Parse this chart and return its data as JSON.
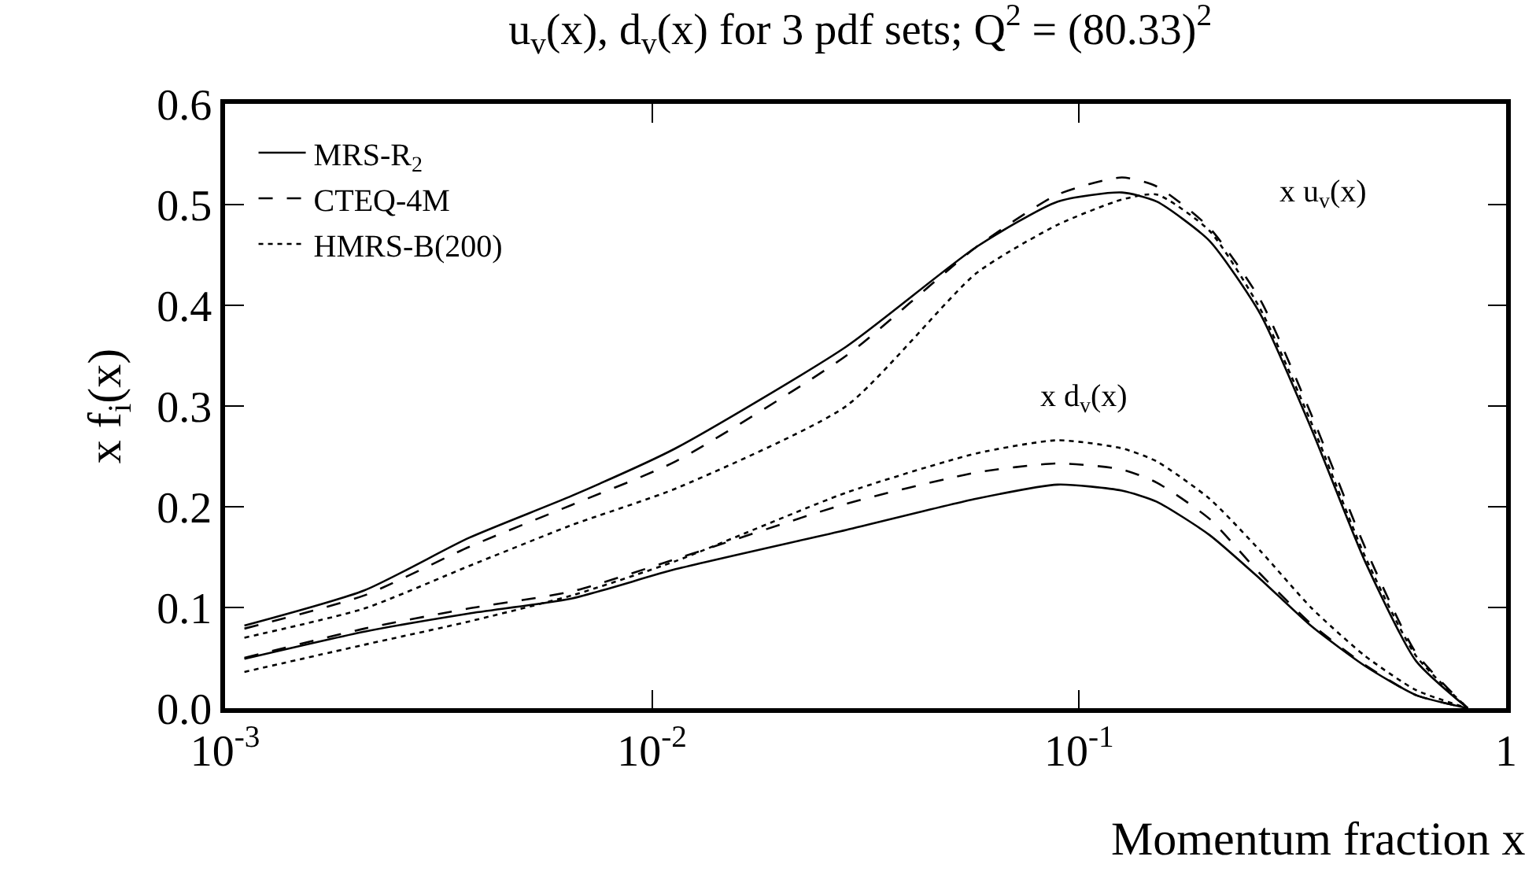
{
  "chart_data": {
    "type": "line",
    "title": "u$_{v}$(x), d$_{v}$(x) for 3 pdf sets; Q$^{2}$ = (80.33)$^{2}$",
    "xlabel": "Momentum fraction x",
    "ylabel": "x f$_{i}$(x)",
    "x": [
      0.00111,
      0.00212,
      0.00372,
      0.0065,
      0.01135,
      0.0285,
      0.0575,
      0.0891,
      0.126,
      0.152,
      0.202,
      0.266,
      0.351,
      0.467,
      0.615,
      0.813
    ],
    "series": [
      {
        "name": "MRS-R$_{2}$",
        "color": "#000000",
        "line_style": "solid",
        "values": [
          0.082,
          0.117,
          0.169,
          0.211,
          0.258,
          0.359,
          0.458,
          0.503,
          0.512,
          0.503,
          0.464,
          0.391,
          0.276,
          0.146,
          0.047,
          0
        ]
      },
      {
        "name": "CTEQ-4M",
        "color": "#000000",
        "line_style": "dashed",
        "values": [
          0.079,
          0.112,
          0.16,
          0.202,
          0.245,
          0.35,
          0.458,
          0.51,
          0.527,
          0.518,
          0.477,
          0.405,
          0.29,
          0.16,
          0.055,
          0
        ]
      },
      {
        "name": "HMRS-B(200)",
        "color": "#000000",
        "line_style": "dotted",
        "values": [
          0.07,
          0.099,
          0.141,
          0.182,
          0.218,
          0.3,
          0.432,
          0.48,
          0.505,
          0.51,
          0.474,
          0.396,
          0.282,
          0.151,
          0.052,
          0
        ]
      },
      {
        "color": "#000000",
        "line_style": "solid",
        "values": [
          0.049,
          0.076,
          0.094,
          0.109,
          0.138,
          0.177,
          0.208,
          0.222,
          0.216,
          0.205,
          0.172,
          0.128,
          0.081,
          0.042,
          0.013,
          0
        ]
      },
      {
        "color": "#000000",
        "line_style": "dashed",
        "values": [
          0.05,
          0.079,
          0.099,
          0.116,
          0.148,
          0.203,
          0.234,
          0.243,
          0.237,
          0.224,
          0.188,
          0.133,
          0.083,
          0.043,
          0.013,
          0
        ]
      },
      {
        "color": "#000000",
        "line_style": "dotted",
        "values": [
          0.036,
          0.063,
          0.086,
          0.112,
          0.146,
          0.214,
          0.253,
          0.266,
          0.258,
          0.245,
          0.208,
          0.156,
          0.099,
          0.052,
          0.018,
          0
        ]
      }
    ],
    "annotations": [
      "x u$_{v}$(x)",
      "x d$_{v}$(x)"
    ],
    "log": "x",
    "xlim": [
      0.001,
      1
    ],
    "xticks": [
      {
        "value": 0.001,
        "label": "10$^{-3}$"
      },
      {
        "value": 0.01,
        "label": "10$^{-2}$"
      },
      {
        "value": 0.1,
        "label": "10$^{-1}$"
      },
      1
    ],
    "ylim": [
      0,
      0.6
    ],
    "yticks": [
      {
        "value": 0,
        "label": "0.0"
      },
      0.1,
      0.2,
      0.3,
      0.4,
      0.5,
      0.6
    ],
    "legend": "top left",
    "marker": "none"
  }
}
